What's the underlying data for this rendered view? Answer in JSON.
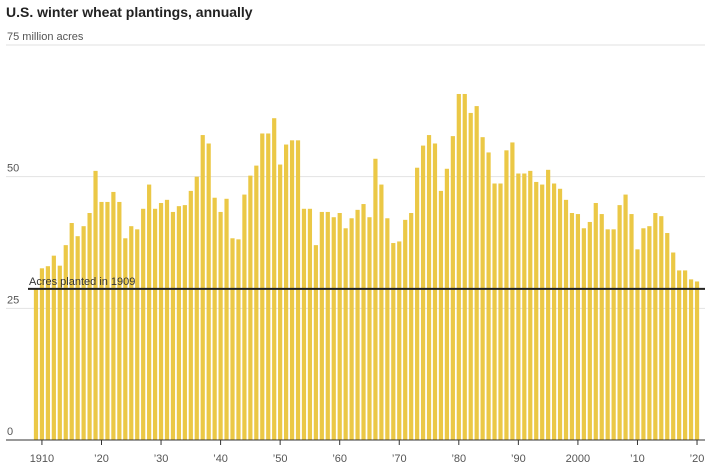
{
  "chart_data": {
    "type": "bar",
    "title": "U.S. winter wheat plantings, annually",
    "categories": [
      null,
      "1910",
      null,
      null,
      null,
      null,
      null,
      null,
      null,
      null,
      null,
      "’20",
      null,
      null,
      null,
      null,
      null,
      null,
      null,
      null,
      null,
      "’30",
      null,
      null,
      null,
      null,
      null,
      null,
      null,
      null,
      null,
      "’40",
      null,
      null,
      null,
      null,
      null,
      null,
      null,
      null,
      null,
      "’50",
      null,
      null,
      null,
      null,
      null,
      null,
      null,
      null,
      null,
      "’60",
      null,
      null,
      null,
      null,
      null,
      null,
      null,
      null,
      null,
      "’70",
      null,
      null,
      null,
      null,
      null,
      null,
      null,
      null,
      null,
      "’80",
      null,
      null,
      null,
      null,
      null,
      null,
      null,
      null,
      null,
      "’90",
      null,
      null,
      null,
      null,
      null,
      null,
      null,
      null,
      null,
      "2000",
      null,
      null,
      null,
      null,
      null,
      null,
      null,
      null,
      null,
      "’10",
      null,
      null,
      null,
      null,
      null,
      null,
      null,
      null,
      null,
      "’20"
    ],
    "values": [
      28.7,
      32.6,
      33,
      35,
      33.1,
      37,
      41.2,
      38.7,
      40.6,
      43.1,
      51.1,
      45.2,
      45.2,
      47.1,
      45.2,
      38.3,
      40.6,
      40,
      43.9,
      48.5,
      43.9,
      45,
      45.6,
      43.3,
      44.4,
      44.6,
      47.3,
      50,
      57.9,
      56.3,
      46,
      43.3,
      45.8,
      38.3,
      38.1,
      46.6,
      50.2,
      52.1,
      58.2,
      58.2,
      61.1,
      52.3,
      56.1,
      56.9,
      56.9,
      43.9,
      43.9,
      37,
      43.3,
      43.3,
      42.3,
      43.1,
      40.2,
      42.1,
      43.7,
      44.8,
      42.3,
      53.4,
      48.5,
      42.1,
      37.4,
      37.7,
      41.8,
      43.1,
      51.7,
      55.9,
      57.9,
      56.3,
      47.3,
      51.5,
      57.7,
      65.7,
      65.7,
      62.1,
      63.4,
      57.5,
      54.6,
      48.7,
      48.7,
      55,
      56.5,
      50.6,
      50.6,
      51.1,
      49,
      48.5,
      51.3,
      48.7,
      47.7,
      45.6,
      43.1,
      42.9,
      40.2,
      41.4,
      45,
      42.9,
      40,
      40,
      44.6,
      46.6,
      42.9,
      36.2,
      40.2,
      40.6,
      43.1,
      42.5,
      39.3,
      35.6,
      32.2,
      32.2,
      30.5,
      30.1
    ],
    "color": "#ebc846",
    "ylim": [
      0,
      75
    ],
    "yticks": [
      0,
      25,
      50,
      {
        "value": 75,
        "label": "75 million acres"
      }
    ],
    "grid": true,
    "reference_line": {
      "value": 28.7,
      "label": "Acres planted in 1909"
    }
  }
}
